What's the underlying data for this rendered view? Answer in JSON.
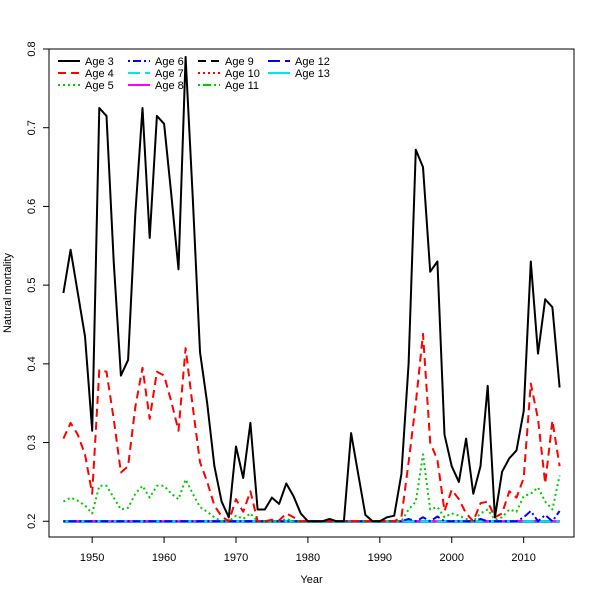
{
  "chart_data": {
    "type": "line",
    "title": "",
    "xlabel": "Year",
    "ylabel": "Natural mortality",
    "xlim": [
      1944,
      2017
    ],
    "ylim": [
      0.18,
      0.8
    ],
    "x_ticks": [
      1950,
      1960,
      1970,
      1980,
      1990,
      2000,
      2010
    ],
    "y_ticks": [
      0.2,
      0.3,
      0.4,
      0.5,
      0.6,
      0.7,
      0.8
    ],
    "legend_position": "top-left",
    "x": [
      1946,
      1947,
      1948,
      1949,
      1950,
      1951,
      1952,
      1953,
      1954,
      1955,
      1956,
      1957,
      1958,
      1959,
      1960,
      1961,
      1962,
      1963,
      1964,
      1965,
      1966,
      1967,
      1968,
      1969,
      1970,
      1971,
      1972,
      1973,
      1974,
      1975,
      1976,
      1977,
      1978,
      1979,
      1980,
      1981,
      1982,
      1983,
      1984,
      1985,
      1986,
      1987,
      1988,
      1989,
      1990,
      1991,
      1992,
      1993,
      1994,
      1995,
      1996,
      1997,
      1998,
      1999,
      2000,
      2001,
      2002,
      2003,
      2004,
      2005,
      2006,
      2007,
      2008,
      2009,
      2010,
      2011,
      2012,
      2013,
      2014,
      2015
    ],
    "series": [
      {
        "name": "Age 3",
        "color": "#000000",
        "dash": "solid",
        "values": [
          0.49,
          0.545,
          0.49,
          0.435,
          0.315,
          0.725,
          0.715,
          0.53,
          0.385,
          0.405,
          0.59,
          0.725,
          0.56,
          0.715,
          0.705,
          0.615,
          0.52,
          0.79,
          0.61,
          0.415,
          0.35,
          0.27,
          0.225,
          0.205,
          0.295,
          0.255,
          0.325,
          0.215,
          0.215,
          0.23,
          0.222,
          0.248,
          0.232,
          0.21,
          0.2,
          0.2,
          0.2,
          0.203,
          0.2,
          0.2,
          0.312,
          0.26,
          0.208,
          0.2,
          0.2,
          0.205,
          0.207,
          0.26,
          0.4,
          0.672,
          0.65,
          0.517,
          0.53,
          0.31,
          0.27,
          0.25,
          0.305,
          0.235,
          0.27,
          0.372,
          0.205,
          0.263,
          0.28,
          0.29,
          0.34,
          0.53,
          0.413,
          0.482,
          0.472,
          0.37
        ]
      },
      {
        "name": "Age 4",
        "color": "#ff0000",
        "dash": "dashed",
        "values": [
          0.305,
          0.325,
          0.31,
          0.285,
          0.235,
          0.392,
          0.39,
          0.33,
          0.262,
          0.27,
          0.345,
          0.395,
          0.33,
          0.39,
          0.385,
          0.352,
          0.315,
          0.42,
          0.345,
          0.275,
          0.25,
          0.22,
          0.206,
          0.2,
          0.228,
          0.212,
          0.238,
          0.2,
          0.2,
          0.202,
          0.201,
          0.21,
          0.205,
          0.2,
          0.2,
          0.2,
          0.2,
          0.2,
          0.2,
          0.2,
          0.2,
          0.2,
          0.2,
          0.2,
          0.2,
          0.2,
          0.2,
          0.205,
          0.275,
          0.35,
          0.438,
          0.3,
          0.278,
          0.213,
          0.24,
          0.228,
          0.21,
          0.2,
          0.223,
          0.225,
          0.205,
          0.21,
          0.238,
          0.23,
          0.255,
          0.375,
          0.33,
          0.248,
          0.328,
          0.27
        ]
      },
      {
        "name": "Age 5",
        "color": "#00cd00",
        "dash": "dotted",
        "values": [
          0.225,
          0.23,
          0.226,
          0.22,
          0.21,
          0.245,
          0.245,
          0.23,
          0.215,
          0.217,
          0.235,
          0.245,
          0.23,
          0.245,
          0.245,
          0.235,
          0.228,
          0.253,
          0.235,
          0.218,
          0.212,
          0.205,
          0.2,
          0.2,
          0.207,
          0.203,
          0.21,
          0.2,
          0.2,
          0.2,
          0.2,
          0.203,
          0.2,
          0.2,
          0.2,
          0.2,
          0.2,
          0.2,
          0.2,
          0.2,
          0.2,
          0.2,
          0.2,
          0.2,
          0.2,
          0.2,
          0.2,
          0.2,
          0.215,
          0.225,
          0.285,
          0.215,
          0.218,
          0.205,
          0.21,
          0.207,
          0.203,
          0.2,
          0.21,
          0.215,
          0.202,
          0.205,
          0.215,
          0.212,
          0.232,
          0.235,
          0.243,
          0.225,
          0.215,
          0.258
        ]
      },
      {
        "name": "Age 6",
        "color": "#0000ff",
        "dash": "dashdot",
        "values": [
          0.2,
          0.2,
          0.2,
          0.2,
          0.2,
          0.2,
          0.2,
          0.2,
          0.2,
          0.2,
          0.2,
          0.2,
          0.2,
          0.2,
          0.2,
          0.2,
          0.2,
          0.2,
          0.2,
          0.2,
          0.2,
          0.2,
          0.2,
          0.2,
          0.2,
          0.2,
          0.2,
          0.2,
          0.2,
          0.2,
          0.2,
          0.2,
          0.2,
          0.2,
          0.2,
          0.2,
          0.2,
          0.2,
          0.2,
          0.2,
          0.2,
          0.2,
          0.2,
          0.2,
          0.2,
          0.2,
          0.2,
          0.2,
          0.203,
          0.2,
          0.205,
          0.2,
          0.206,
          0.2,
          0.2,
          0.2,
          0.2,
          0.2,
          0.203,
          0.2,
          0.2,
          0.2,
          0.2,
          0.2,
          0.205,
          0.213,
          0.2,
          0.208,
          0.2,
          0.213
        ]
      },
      {
        "name": "Age 7",
        "color": "#00e5ee",
        "dash": "longdash",
        "values": [
          0.2,
          0.2,
          0.2,
          0.2,
          0.2,
          0.2,
          0.2,
          0.2,
          0.2,
          0.2,
          0.2,
          0.2,
          0.2,
          0.2,
          0.2,
          0.2,
          0.2,
          0.2,
          0.2,
          0.2,
          0.2,
          0.2,
          0.2,
          0.2,
          0.2,
          0.2,
          0.2,
          0.2,
          0.2,
          0.2,
          0.2,
          0.2,
          0.2,
          0.2,
          0.2,
          0.2,
          0.2,
          0.2,
          0.2,
          0.2,
          0.2,
          0.2,
          0.2,
          0.2,
          0.2,
          0.2,
          0.2,
          0.2,
          0.2,
          0.2,
          0.2,
          0.2,
          0.2,
          0.2,
          0.2,
          0.2,
          0.2,
          0.2,
          0.2,
          0.2,
          0.2,
          0.2,
          0.2,
          0.2,
          0.2,
          0.2,
          0.2,
          0.2,
          0.2,
          0.2
        ]
      },
      {
        "name": "Age 8",
        "color": "#ff00ff",
        "dash": "solid",
        "values": [
          0.2,
          0.2,
          0.2,
          0.2,
          0.2,
          0.2,
          0.2,
          0.2,
          0.2,
          0.2,
          0.2,
          0.2,
          0.2,
          0.2,
          0.2,
          0.2,
          0.2,
          0.2,
          0.2,
          0.2,
          0.2,
          0.2,
          0.2,
          0.2,
          0.2,
          0.2,
          0.2,
          0.2,
          0.2,
          0.2,
          0.2,
          0.2,
          0.2,
          0.2,
          0.2,
          0.2,
          0.2,
          0.2,
          0.2,
          0.2,
          0.2,
          0.2,
          0.2,
          0.2,
          0.2,
          0.2,
          0.2,
          0.2,
          0.2,
          0.2,
          0.2,
          0.2,
          0.2,
          0.2,
          0.2,
          0.2,
          0.2,
          0.2,
          0.2,
          0.2,
          0.2,
          0.2,
          0.2,
          0.2,
          0.2,
          0.2,
          0.2,
          0.2,
          0.2,
          0.2
        ]
      },
      {
        "name": "Age 9",
        "color": "#000000",
        "dash": "dashed",
        "values": [
          0.2,
          0.2,
          0.2,
          0.2,
          0.2,
          0.2,
          0.2,
          0.2,
          0.2,
          0.2,
          0.2,
          0.2,
          0.2,
          0.2,
          0.2,
          0.2,
          0.2,
          0.2,
          0.2,
          0.2,
          0.2,
          0.2,
          0.2,
          0.2,
          0.2,
          0.2,
          0.2,
          0.2,
          0.2,
          0.2,
          0.2,
          0.2,
          0.2,
          0.2,
          0.2,
          0.2,
          0.2,
          0.2,
          0.2,
          0.2,
          0.2,
          0.2,
          0.2,
          0.2,
          0.2,
          0.2,
          0.2,
          0.2,
          0.2,
          0.2,
          0.2,
          0.2,
          0.2,
          0.2,
          0.2,
          0.2,
          0.2,
          0.2,
          0.2,
          0.2,
          0.2,
          0.2,
          0.2,
          0.2,
          0.2,
          0.2,
          0.2,
          0.2,
          0.2,
          0.2
        ]
      },
      {
        "name": "Age 10",
        "color": "#ff0000",
        "dash": "dotted",
        "values": [
          0.2,
          0.2,
          0.2,
          0.2,
          0.2,
          0.2,
          0.2,
          0.2,
          0.2,
          0.2,
          0.2,
          0.2,
          0.2,
          0.2,
          0.2,
          0.2,
          0.2,
          0.2,
          0.2,
          0.2,
          0.2,
          0.2,
          0.2,
          0.2,
          0.2,
          0.2,
          0.2,
          0.2,
          0.2,
          0.2,
          0.2,
          0.2,
          0.2,
          0.2,
          0.2,
          0.2,
          0.2,
          0.2,
          0.2,
          0.2,
          0.2,
          0.2,
          0.2,
          0.2,
          0.2,
          0.2,
          0.2,
          0.2,
          0.2,
          0.2,
          0.2,
          0.2,
          0.2,
          0.2,
          0.2,
          0.2,
          0.2,
          0.2,
          0.2,
          0.2,
          0.2,
          0.2,
          0.2,
          0.2,
          0.2,
          0.2,
          0.2,
          0.2,
          0.2,
          0.2
        ]
      },
      {
        "name": "Age 11",
        "color": "#00cd00",
        "dash": "dashdot",
        "values": [
          0.2,
          0.2,
          0.2,
          0.2,
          0.2,
          0.2,
          0.2,
          0.2,
          0.2,
          0.2,
          0.2,
          0.2,
          0.2,
          0.2,
          0.2,
          0.2,
          0.2,
          0.2,
          0.2,
          0.2,
          0.2,
          0.2,
          0.2,
          0.2,
          0.2,
          0.2,
          0.2,
          0.2,
          0.2,
          0.2,
          0.2,
          0.2,
          0.2,
          0.2,
          0.2,
          0.2,
          0.2,
          0.2,
          0.2,
          0.2,
          0.2,
          0.2,
          0.2,
          0.2,
          0.2,
          0.2,
          0.2,
          0.2,
          0.2,
          0.2,
          0.2,
          0.2,
          0.2,
          0.2,
          0.2,
          0.2,
          0.2,
          0.2,
          0.2,
          0.2,
          0.2,
          0.2,
          0.2,
          0.2,
          0.2,
          0.2,
          0.2,
          0.2,
          0.2,
          0.2
        ]
      },
      {
        "name": "Age 12",
        "color": "#0000ff",
        "dash": "longdash",
        "values": [
          0.2,
          0.2,
          0.2,
          0.2,
          0.2,
          0.2,
          0.2,
          0.2,
          0.2,
          0.2,
          0.2,
          0.2,
          0.2,
          0.2,
          0.2,
          0.2,
          0.2,
          0.2,
          0.2,
          0.2,
          0.2,
          0.2,
          0.2,
          0.2,
          0.2,
          0.2,
          0.2,
          0.2,
          0.2,
          0.2,
          0.2,
          0.2,
          0.2,
          0.2,
          0.2,
          0.2,
          0.2,
          0.2,
          0.2,
          0.2,
          0.2,
          0.2,
          0.2,
          0.2,
          0.2,
          0.2,
          0.2,
          0.2,
          0.2,
          0.2,
          0.2,
          0.2,
          0.2,
          0.2,
          0.2,
          0.2,
          0.2,
          0.2,
          0.2,
          0.2,
          0.2,
          0.2,
          0.2,
          0.2,
          0.2,
          0.2,
          0.2,
          0.2,
          0.2,
          0.2
        ]
      },
      {
        "name": "Age 13",
        "color": "#00e5ee",
        "dash": "solid",
        "values": [
          0.199,
          0.199,
          0.199,
          0.199,
          0.199,
          0.199,
          0.199,
          0.199,
          0.199,
          0.199,
          0.199,
          0.199,
          0.199,
          0.199,
          0.199,
          0.199,
          0.199,
          0.199,
          0.199,
          0.199,
          0.199,
          0.199,
          0.199,
          0.199,
          0.199,
          0.199,
          0.199,
          0.199,
          0.199,
          0.199,
          0.199,
          0.199,
          0.199,
          0.199,
          0.199,
          0.199,
          0.199,
          0.199,
          0.199,
          0.199,
          0.199,
          0.199,
          0.199,
          0.199,
          0.199,
          0.199,
          0.199,
          0.199,
          0.199,
          0.199,
          0.199,
          0.199,
          0.199,
          0.199,
          0.199,
          0.199,
          0.199,
          0.199,
          0.199,
          0.199,
          0.199,
          0.199,
          0.199,
          0.199,
          0.199,
          0.199,
          0.199,
          0.199,
          0.199,
          0.199
        ]
      }
    ]
  }
}
